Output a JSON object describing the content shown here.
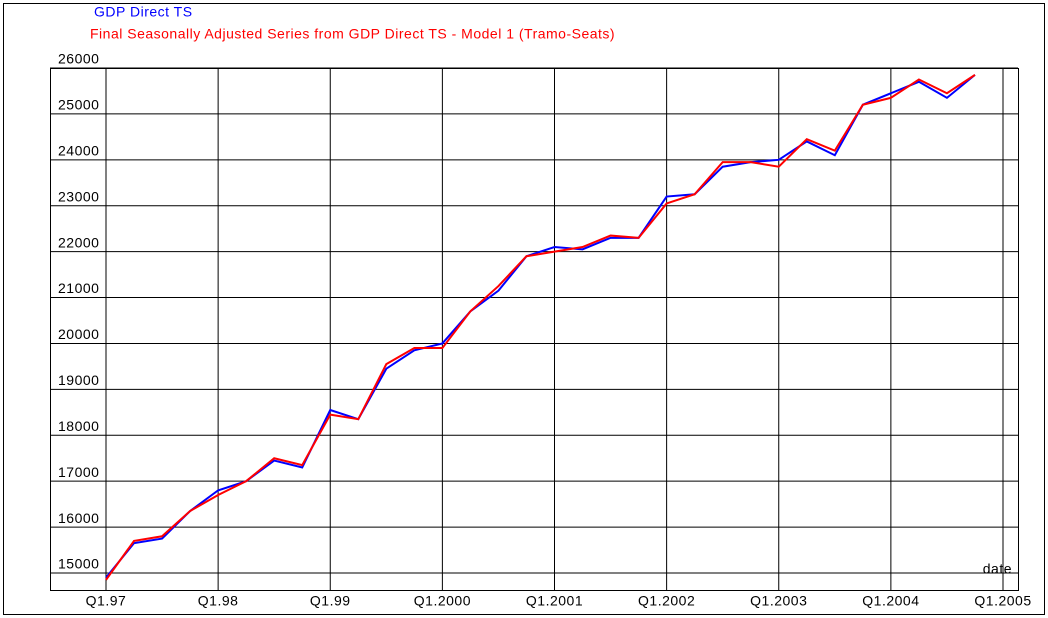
{
  "chart_data": {
    "type": "line",
    "series": [
      {
        "name": "GDP Direct TS",
        "color": "#0000ff",
        "values": [
          14900,
          15650,
          15750,
          16350,
          16800,
          17000,
          17450,
          17300,
          18550,
          18350,
          19450,
          19850,
          20000,
          20700,
          21150,
          21900,
          22100,
          22050,
          22300,
          22300,
          23200,
          23250,
          23850,
          23950,
          24000,
          24400,
          24100,
          25200,
          25450,
          25700,
          25350,
          25850,
          null
        ]
      },
      {
        "name": "Final Seasonally Adjusted Series from GDP Direct TS - Model 1 (Tramo-Seats)",
        "color": "#ff0000",
        "values": [
          14850,
          15700,
          15800,
          16350,
          16700,
          17000,
          17500,
          17350,
          18450,
          18350,
          19550,
          19900,
          19900,
          20700,
          21250,
          21900,
          22000,
          22100,
          22350,
          22300,
          23050,
          23250,
          23950,
          23950,
          23850,
          24450,
          24200,
          25200,
          25350,
          25750,
          25450,
          25850,
          null
        ]
      }
    ],
    "categories": [
      "Q1.97",
      null,
      null,
      null,
      "Q1.98",
      null,
      null,
      null,
      "Q1.99",
      null,
      null,
      null,
      "Q1.2000",
      null,
      null,
      null,
      "Q1.2001",
      null,
      null,
      null,
      "Q1.2002",
      null,
      null,
      null,
      "Q1.2003",
      null,
      null,
      null,
      "Q1.2004",
      null,
      null,
      null,
      "Q1.2005"
    ],
    "xlabel": "date",
    "ylim": [
      15000,
      26000
    ],
    "yticks": [
      15000,
      16000,
      17000,
      18000,
      19000,
      20000,
      21000,
      22000,
      23000,
      24000,
      25000,
      26000
    ],
    "grid": true
  }
}
